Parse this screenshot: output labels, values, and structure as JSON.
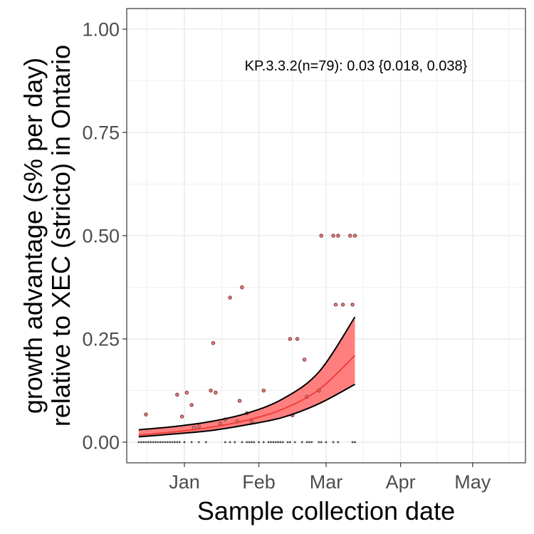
{
  "chart_data": {
    "type": "scatter",
    "title": "",
    "xlabel": "Sample collection date",
    "ylabel_lines": [
      "growth advantage (s% per day)",
      "relative to XEC (stricto) in Ontario"
    ],
    "annotation": "KP.3.3.2(n=79): 0.03 {0.018, 0.038}",
    "x_ticks": [
      {
        "date": "2025-01-01",
        "label": "Jan"
      },
      {
        "date": "2025-02-01",
        "label": "Feb"
      },
      {
        "date": "2025-03-01",
        "label": "Mar"
      },
      {
        "date": "2025-04-01",
        "label": "Apr"
      },
      {
        "date": "2025-05-01",
        "label": "May"
      }
    ],
    "xlim": [
      "2024-12-08",
      "2025-05-23"
    ],
    "y_ticks": [
      {
        "value": 0,
        "label": "0.00"
      },
      {
        "value": 0.25,
        "label": "0.25"
      },
      {
        "value": 0.5,
        "label": "0.50"
      },
      {
        "value": 0.75,
        "label": "0.75"
      },
      {
        "value": 1,
        "label": "1.00"
      }
    ],
    "ylim": [
      -0.05,
      1.05
    ],
    "grid": true,
    "colors": {
      "fit_line": "#f0413a",
      "band_fill": "#ff7f7f",
      "band_edge": "#000000",
      "point": "#8c3d3d",
      "panel_border": "#333333",
      "grid": "#ebebeb"
    },
    "fit": {
      "x": [
        "2024-12-13",
        "2024-12-28",
        "2025-01-12",
        "2025-01-27",
        "2025-02-11",
        "2025-02-26",
        "2025-03-13"
      ],
      "y": [
        0.017,
        0.025,
        0.036,
        0.053,
        0.08,
        0.127,
        0.21
      ],
      "lower": [
        0.013,
        0.02,
        0.028,
        0.042,
        0.06,
        0.093,
        0.14
      ],
      "upper": [
        0.03,
        0.038,
        0.05,
        0.07,
        0.105,
        0.17,
        0.303
      ]
    },
    "points": [
      {
        "x": "2024-12-13",
        "y": 0
      },
      {
        "x": "2024-12-14",
        "y": 0
      },
      {
        "x": "2024-12-15",
        "y": 0
      },
      {
        "x": "2024-12-16",
        "y": 0
      },
      {
        "x": "2024-12-17",
        "y": 0
      },
      {
        "x": "2024-12-18",
        "y": 0
      },
      {
        "x": "2024-12-19",
        "y": 0
      },
      {
        "x": "2024-12-20",
        "y": 0
      },
      {
        "x": "2024-12-21",
        "y": 0
      },
      {
        "x": "2024-12-22",
        "y": 0
      },
      {
        "x": "2024-12-23",
        "y": 0
      },
      {
        "x": "2024-12-24",
        "y": 0
      },
      {
        "x": "2024-12-25",
        "y": 0
      },
      {
        "x": "2024-12-26",
        "y": 0
      },
      {
        "x": "2024-12-27",
        "y": 0
      },
      {
        "x": "2024-12-28",
        "y": 0
      },
      {
        "x": "2024-12-29",
        "y": 0
      },
      {
        "x": "2024-12-30",
        "y": 0
      },
      {
        "x": "2025-01-01",
        "y": 0
      },
      {
        "x": "2025-01-04",
        "y": 0
      },
      {
        "x": "2025-01-07",
        "y": 0
      },
      {
        "x": "2025-01-10",
        "y": 0
      },
      {
        "x": "2025-01-18",
        "y": 0
      },
      {
        "x": "2025-01-20",
        "y": 0
      },
      {
        "x": "2025-01-22",
        "y": 0
      },
      {
        "x": "2025-01-25",
        "y": 0
      },
      {
        "x": "2025-01-27",
        "y": 0
      },
      {
        "x": "2025-01-28",
        "y": 0
      },
      {
        "x": "2025-01-29",
        "y": 0
      },
      {
        "x": "2025-01-30",
        "y": 0
      },
      {
        "x": "2025-02-01",
        "y": 0
      },
      {
        "x": "2025-02-03",
        "y": 0
      },
      {
        "x": "2025-02-05",
        "y": 0
      },
      {
        "x": "2025-02-06",
        "y": 0
      },
      {
        "x": "2025-02-07",
        "y": 0
      },
      {
        "x": "2025-02-08",
        "y": 0
      },
      {
        "x": "2025-02-09",
        "y": 0
      },
      {
        "x": "2025-02-10",
        "y": 0
      },
      {
        "x": "2025-02-11",
        "y": 0
      },
      {
        "x": "2025-02-13",
        "y": 0
      },
      {
        "x": "2025-02-14",
        "y": 0
      },
      {
        "x": "2025-02-16",
        "y": 0
      },
      {
        "x": "2025-02-19",
        "y": 0
      },
      {
        "x": "2025-02-21",
        "y": 0
      },
      {
        "x": "2025-02-22",
        "y": 0
      },
      {
        "x": "2025-02-23",
        "y": 0
      },
      {
        "x": "2025-02-26",
        "y": 0
      },
      {
        "x": "2025-02-27",
        "y": 0
      },
      {
        "x": "2025-03-01",
        "y": 0
      },
      {
        "x": "2025-03-04",
        "y": 0
      },
      {
        "x": "2025-03-06",
        "y": 0
      },
      {
        "x": "2025-03-12",
        "y": 0
      },
      {
        "x": "2025-03-13",
        "y": 0
      },
      {
        "x": "2024-12-16",
        "y": 0.067
      },
      {
        "x": "2024-12-29",
        "y": 0.115
      },
      {
        "x": "2024-12-31",
        "y": 0.062
      },
      {
        "x": "2025-01-02",
        "y": 0.12
      },
      {
        "x": "2025-01-04",
        "y": 0.09
      },
      {
        "x": "2025-01-05",
        "y": 0.035
      },
      {
        "x": "2025-01-07",
        "y": 0.038
      },
      {
        "x": "2025-01-12",
        "y": 0.125
      },
      {
        "x": "2025-01-13",
        "y": 0.24
      },
      {
        "x": "2025-01-14",
        "y": 0.12
      },
      {
        "x": "2025-01-16",
        "y": 0.045
      },
      {
        "x": "2025-01-18",
        "y": 0.055
      },
      {
        "x": "2025-01-23",
        "y": 0.05
      },
      {
        "x": "2025-01-24",
        "y": 0.1
      },
      {
        "x": "2025-01-20",
        "y": 0.35
      },
      {
        "x": "2025-01-25",
        "y": 0.375
      },
      {
        "x": "2025-01-27",
        "y": 0.07
      },
      {
        "x": "2025-01-29",
        "y": 0.05
      },
      {
        "x": "2025-02-03",
        "y": 0.125
      },
      {
        "x": "2025-02-14",
        "y": 0.25
      },
      {
        "x": "2025-02-15",
        "y": 0.065
      },
      {
        "x": "2025-02-17",
        "y": 0.25
      },
      {
        "x": "2025-02-20",
        "y": 0.2
      },
      {
        "x": "2025-02-21",
        "y": 0.11
      },
      {
        "x": "2025-02-26",
        "y": 0.125
      },
      {
        "x": "2025-02-27",
        "y": 0.5
      },
      {
        "x": "2025-03-04",
        "y": 0.5
      },
      {
        "x": "2025-03-05",
        "y": 0.333
      },
      {
        "x": "2025-03-06",
        "y": 0.5
      },
      {
        "x": "2025-03-08",
        "y": 0.333
      },
      {
        "x": "2025-03-11",
        "y": 0.5
      },
      {
        "x": "2025-03-12",
        "y": 0.333
      },
      {
        "x": "2025-03-13",
        "y": 0.5
      }
    ]
  }
}
